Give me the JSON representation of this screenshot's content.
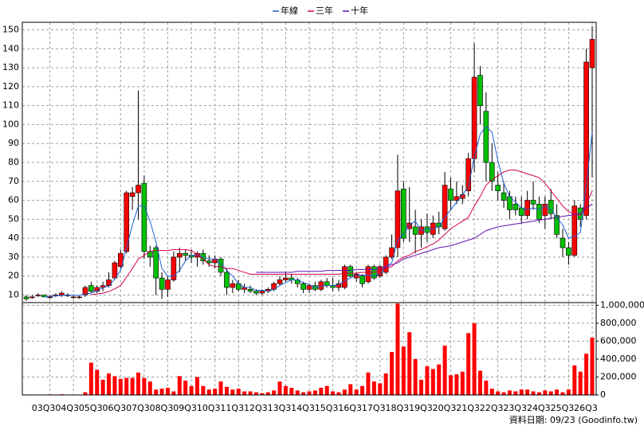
{
  "chart_data": {
    "type": "candlestick",
    "categories": [
      null,
      null,
      null,
      null,
      "03Q3",
      null,
      null,
      null,
      "04Q3",
      null,
      null,
      null,
      "05Q3",
      null,
      null,
      null,
      "06Q3",
      null,
      null,
      null,
      "07Q3",
      null,
      null,
      null,
      "08Q3",
      null,
      null,
      null,
      "09Q3",
      null,
      null,
      null,
      "10Q3",
      null,
      null,
      null,
      "11Q3",
      null,
      null,
      null,
      "12Q3",
      null,
      null,
      null,
      "13Q3",
      null,
      null,
      null,
      "14Q3",
      null,
      null,
      null,
      "15Q3",
      null,
      null,
      null,
      "16Q3",
      null,
      null,
      null,
      "17Q3",
      null,
      null,
      null,
      "18Q3",
      null,
      null,
      null,
      "19Q3",
      null,
      null,
      null,
      "20Q3",
      null,
      null,
      null,
      "21Q3",
      null,
      null,
      null,
      "22Q3",
      null,
      null,
      null,
      "23Q3",
      null,
      null,
      null,
      "24Q3",
      null,
      null,
      null,
      "25Q3",
      null,
      null,
      null,
      "26Q3"
    ],
    "open": [
      9,
      9,
      10,
      10,
      9,
      10,
      10,
      10,
      9,
      9,
      10,
      15,
      12,
      14,
      15,
      19,
      25,
      33,
      62,
      64,
      69,
      33,
      35,
      19,
      13,
      18,
      30,
      32,
      31,
      30,
      32,
      28,
      27,
      29,
      22,
      14,
      16,
      13,
      13,
      12,
      11,
      12,
      13,
      16,
      18,
      19,
      18,
      16,
      13,
      15,
      13,
      17,
      15,
      14,
      14,
      25,
      19,
      20,
      17,
      25,
      20,
      22,
      30,
      35,
      66,
      45,
      46,
      42,
      46,
      42,
      48,
      45,
      66,
      60,
      61,
      65,
      82,
      126,
      107,
      80,
      68,
      64,
      62,
      58,
      56,
      52,
      60,
      58,
      52,
      60,
      52,
      40,
      35,
      31,
      56,
      52,
      130
    ],
    "high": [
      10,
      10,
      11,
      10,
      10,
      11,
      12,
      11,
      10,
      10,
      15,
      17,
      15,
      17,
      22,
      28,
      34,
      65,
      67,
      118,
      73,
      36,
      36,
      22,
      20,
      33,
      35,
      34,
      34,
      33,
      34,
      31,
      31,
      30,
      24,
      18,
      18,
      16,
      15,
      13,
      13,
      14,
      17,
      20,
      22,
      21,
      19,
      17,
      16,
      17,
      18,
      19,
      19,
      18,
      26,
      26,
      22,
      21,
      26,
      26,
      26,
      31,
      42,
      84,
      70,
      67,
      55,
      50,
      53,
      52,
      54,
      75,
      72,
      70,
      68,
      85,
      143,
      131,
      117,
      90,
      75,
      70,
      65,
      62,
      62,
      65,
      70,
      62,
      62,
      66,
      58,
      45,
      38,
      60,
      58,
      140,
      152
    ],
    "low": [
      7,
      8,
      9,
      9,
      8,
      9,
      9,
      9,
      8,
      8,
      9,
      11,
      11,
      12,
      14,
      18,
      24,
      32,
      55,
      50,
      29,
      25,
      10,
      8,
      9,
      17,
      22,
      28,
      27,
      25,
      26,
      25,
      24,
      20,
      10,
      11,
      12,
      11,
      11,
      10,
      10,
      11,
      12,
      15,
      17,
      16,
      14,
      11,
      11,
      12,
      12,
      14,
      12,
      12,
      13,
      19,
      17,
      14,
      16,
      18,
      19,
      21,
      29,
      30,
      38,
      38,
      32,
      35,
      38,
      40,
      42,
      44,
      55,
      58,
      58,
      62,
      75,
      100,
      70,
      65,
      60,
      56,
      50,
      52,
      48,
      50,
      55,
      48,
      45,
      50,
      40,
      30,
      26,
      30,
      46,
      50,
      72
    ],
    "close": [
      8,
      9,
      10,
      9,
      9,
      10,
      11,
      10,
      9,
      9,
      14,
      12,
      14,
      15,
      18,
      27,
      32,
      64,
      64,
      68,
      33,
      30,
      19,
      13,
      18,
      30,
      32,
      31,
      30,
      32,
      28,
      27,
      29,
      22,
      14,
      16,
      13,
      14,
      12,
      11,
      12,
      13,
      16,
      18,
      19,
      18,
      16,
      13,
      15,
      13,
      17,
      15,
      14,
      16,
      25,
      20,
      21,
      16,
      25,
      19,
      25,
      30,
      35,
      65,
      40,
      48,
      42,
      46,
      43,
      48,
      46,
      68,
      60,
      62,
      63,
      82,
      125,
      110,
      80,
      70,
      65,
      60,
      55,
      55,
      52,
      60,
      58,
      50,
      58,
      53,
      42,
      35,
      31,
      57,
      50,
      133,
      145
    ],
    "up_color": "#ff0000",
    "down_color": "#00c000",
    "ylim": [
      6,
      154
    ],
    "yticks": [
      10,
      20,
      30,
      40,
      50,
      60,
      70,
      80,
      90,
      100,
      110,
      120,
      130,
      140,
      150
    ],
    "grid": true,
    "series": [
      {
        "name": "年線",
        "color": "#1f5fd0",
        "values": [
          null,
          null,
          null,
          9,
          9.3,
          9.5,
          9.8,
          10,
          10,
          9.8,
          10.5,
          11,
          12.3,
          13.8,
          14.8,
          18.5,
          23,
          35,
          47,
          57,
          57,
          49,
          38,
          24,
          20,
          20,
          23,
          28,
          31,
          31,
          30,
          29,
          29,
          26.5,
          23,
          20,
          16,
          14,
          14,
          12.5,
          12.5,
          12,
          13,
          15,
          16.5,
          18,
          18,
          16.5,
          15.5,
          14,
          14.5,
          15,
          15,
          15.5,
          17.5,
          19,
          20.5,
          20.5,
          20.5,
          20,
          21,
          25,
          27,
          39,
          42,
          47,
          49,
          44,
          45,
          45,
          46,
          51,
          55,
          59,
          63,
          67,
          83,
          95,
          99,
          96,
          81,
          69,
          62,
          59,
          56,
          55,
          56,
          55,
          57,
          55,
          51,
          47,
          40,
          41,
          43,
          68,
          96
        ]
      },
      {
        "name": "三年",
        "color": "#d0004a",
        "values": [
          null,
          null,
          null,
          null,
          null,
          null,
          null,
          null,
          null,
          null,
          null,
          10.2,
          10.6,
          11,
          11.8,
          13.3,
          15,
          19.5,
          24,
          29,
          31,
          33,
          33.5,
          33.5,
          33.5,
          34,
          34,
          34,
          33.5,
          31.5,
          29,
          26,
          25,
          25,
          24,
          24,
          23,
          22,
          21,
          21,
          21,
          21,
          21,
          21,
          21,
          21,
          21,
          21,
          21,
          21,
          21,
          21,
          21,
          21,
          21.5,
          21.5,
          21.5,
          22,
          22,
          22,
          23,
          24,
          25,
          28,
          30,
          31,
          33,
          34,
          35.5,
          37,
          39,
          42,
          45,
          47,
          49,
          51,
          57,
          62,
          68,
          71,
          73,
          75,
          76,
          76,
          75,
          74,
          73,
          72,
          69,
          65,
          61,
          57,
          54,
          53,
          52,
          58,
          65
        ]
      },
      {
        "name": "十年",
        "color": "#6010b0",
        "values": [
          null,
          null,
          null,
          null,
          null,
          null,
          null,
          null,
          null,
          null,
          null,
          null,
          null,
          null,
          null,
          null,
          null,
          null,
          null,
          null,
          null,
          null,
          null,
          null,
          null,
          null,
          null,
          null,
          null,
          null,
          null,
          null,
          null,
          null,
          null,
          null,
          null,
          null,
          null,
          22,
          22,
          22,
          22,
          22,
          22,
          22,
          22.5,
          22.5,
          22.5,
          22.5,
          22.5,
          23,
          23,
          23,
          23,
          23,
          23.5,
          23.5,
          23.5,
          23.5,
          24,
          25,
          26,
          27,
          29,
          30,
          31,
          32,
          33,
          34,
          35,
          35.5,
          36,
          37,
          38,
          39,
          40,
          42,
          44,
          45,
          46,
          46.5,
          47,
          47.5,
          48,
          48.5,
          49,
          49.5,
          50,
          50.5,
          51,
          51.5,
          52,
          52.5,
          53,
          56,
          58
        ]
      }
    ],
    "volume": {
      "color": "#ff0000",
      "values": [
        5000,
        5000,
        4000,
        3000,
        6000,
        5000,
        8000,
        4000,
        3000,
        5000,
        30000,
        360000,
        280000,
        170000,
        240000,
        210000,
        180000,
        190000,
        190000,
        250000,
        190000,
        150000,
        60000,
        70000,
        80000,
        40000,
        210000,
        160000,
        100000,
        200000,
        100000,
        60000,
        70000,
        150000,
        90000,
        60000,
        70000,
        40000,
        40000,
        30000,
        20000,
        30000,
        50000,
        150000,
        100000,
        80000,
        50000,
        30000,
        40000,
        50000,
        80000,
        100000,
        40000,
        30000,
        60000,
        120000,
        60000,
        100000,
        250000,
        150000,
        130000,
        240000,
        480000,
        1020000,
        540000,
        700000,
        400000,
        170000,
        320000,
        290000,
        340000,
        550000,
        220000,
        230000,
        260000,
        690000,
        800000,
        270000,
        160000,
        70000,
        40000,
        30000,
        50000,
        40000,
        60000,
        60000,
        40000,
        30000,
        50000,
        40000,
        60000,
        30000,
        60000,
        330000,
        260000,
        460000,
        640000
      ],
      "ylim": [
        0,
        1030000
      ],
      "yticks": [
        0,
        {
          "value": 200000,
          "label": "200,000"
        },
        {
          "value": 400000,
          "label": "400,000"
        },
        {
          "value": 600000,
          "label": "600,000"
        },
        {
          "value": 800000,
          "label": "800,000"
        },
        {
          "value": 1000000,
          "label": "1,000,000"
        }
      ]
    },
    "footer": "資料日期: 09/23 (Goodinfo.tw)"
  }
}
